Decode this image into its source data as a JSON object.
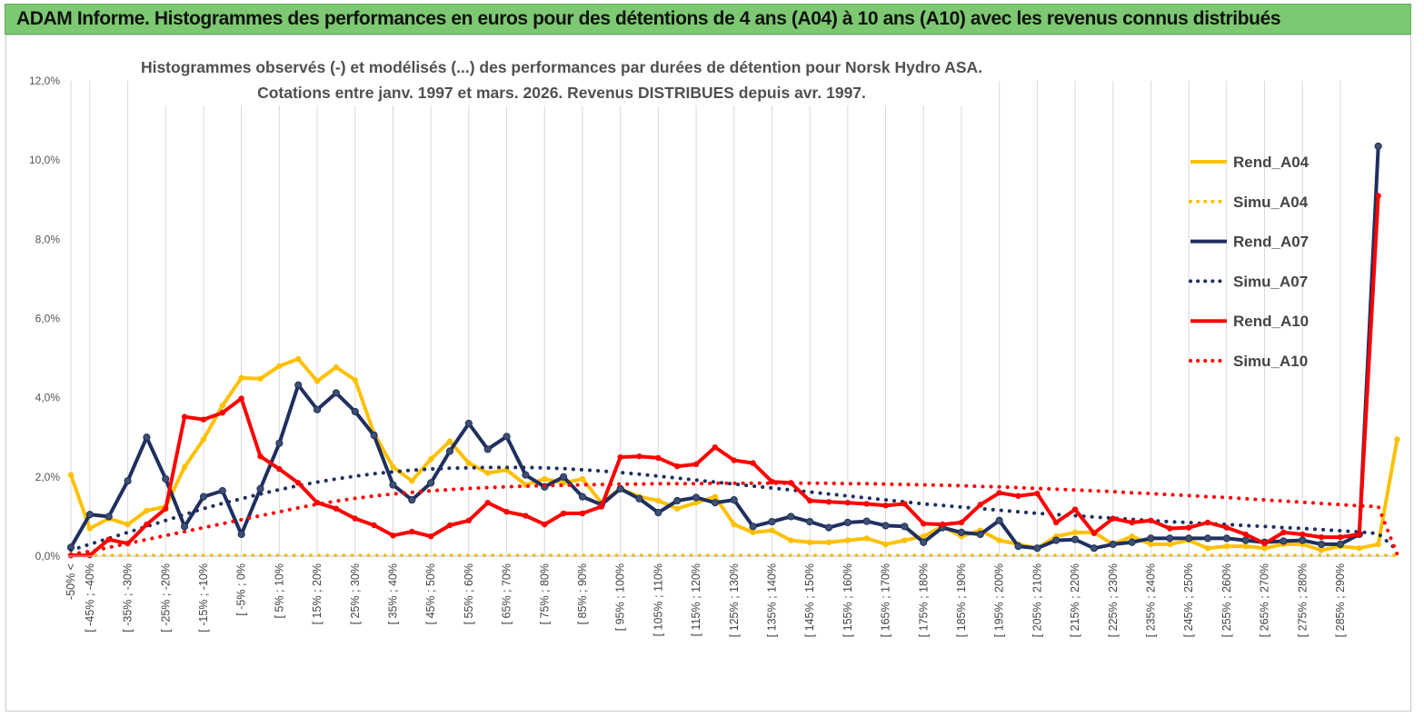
{
  "banner": {
    "title": "ADAM Informe. Histogrammes des performances en euros pour des détentions de 4 ans (A04) à 10 ans (A10) avec les revenus connus distribués"
  },
  "chart_data": {
    "type": "line",
    "title": "Histogrammes observés (-) et modélisés (...) des performances par durées de détention pour Norsk Hydro ASA.",
    "subtitle": "Cotations entre janv. 1997 et mars. 2026. Revenus DISTRIBUES depuis avr. 1997.",
    "xlabel": "",
    "ylabel": "",
    "ylim": [
      0,
      12
    ],
    "y_ticks": [
      "0,0%",
      "2,0%",
      "4,0%",
      "6,0%",
      "8,0%",
      "10,0%",
      "12,0%"
    ],
    "grid": "vertical",
    "legend_position": "right",
    "x_tick_labels": [
      "-50% <",
      "[ -45% ; -40%",
      "[ -35% ; -30%",
      "[ -25% ; -20%",
      "[ -15% ; -10%",
      "[ -5% ; 0%",
      "[ 5% ; 10%",
      "[ 15% ; 20%",
      "[ 25% ; 30%",
      "[ 35% ; 40%",
      "[ 45% ; 50%",
      "[ 55% ; 60%",
      "[ 65% ; 70%",
      "[ 75% ; 80%",
      "[ 85% ; 90%",
      "[ 95% ; 100%",
      "[ 105% ; 110%",
      "[ 115% ; 120%",
      "[ 125% ; 130%",
      "[ 135% ; 140%",
      "[ 145% ; 150%",
      "[ 155% ; 160%",
      "[ 165% ; 170%",
      "[ 175% ; 180%",
      "[ 185% ; 190%",
      "[ 195% ; 200%",
      "[ 205% ; 210%",
      "[ 215% ; 220%",
      "[ 225% ; 230%",
      "[ 235% ; 240%",
      "[ 245% ; 250%",
      "[ 255% ; 260%",
      "[ 265% ; 270%",
      "[ 275% ; 280%",
      "[ 285% ; 290%"
    ],
    "series": [
      {
        "name": "Rend_A04",
        "color": "#FFC000",
        "style": "solid",
        "marker": true,
        "values": [
          2.05,
          0.7,
          0.95,
          0.8,
          1.15,
          1.25,
          2.25,
          2.95,
          3.8,
          4.5,
          4.48,
          4.8,
          4.98,
          4.42,
          4.77,
          4.45,
          3.1,
          2.25,
          1.9,
          2.45,
          2.9,
          2.35,
          2.1,
          2.18,
          1.8,
          1.95,
          1.85,
          1.95,
          1.35,
          1.7,
          1.5,
          1.4,
          1.2,
          1.35,
          1.5,
          0.8,
          0.6,
          0.65,
          0.4,
          0.35,
          0.35,
          0.4,
          0.45,
          0.3,
          0.4,
          0.5,
          0.75,
          0.5,
          0.65,
          0.4,
          0.3,
          0.2,
          0.5,
          0.6,
          0.6,
          0.3,
          0.5,
          0.3,
          0.3,
          0.4,
          0.2,
          0.25,
          0.25,
          0.2,
          0.3,
          0.3,
          0.15,
          0.25,
          0.2,
          0.3,
          2.95
        ]
      },
      {
        "name": "Simu_A04",
        "color": "#FFC000",
        "style": "dotted",
        "marker": false,
        "values": [
          0.02,
          0.02,
          0.02,
          0.02,
          0.02,
          0.02,
          0.02,
          0.02,
          0.02,
          0.02,
          0.02,
          0.02,
          0.02,
          0.02,
          0.02,
          0.02,
          0.02,
          0.02,
          0.02,
          0.02,
          0.02,
          0.02,
          0.02,
          0.02,
          0.02,
          0.02,
          0.02,
          0.02,
          0.02,
          0.02,
          0.02,
          0.02,
          0.02,
          0.02,
          0.02,
          0.02,
          0.02,
          0.02,
          0.02,
          0.02,
          0.02,
          0.02,
          0.02,
          0.02,
          0.02,
          0.02,
          0.02,
          0.02,
          0.02,
          0.02,
          0.02,
          0.02,
          0.02,
          0.02,
          0.02,
          0.02,
          0.02,
          0.02,
          0.02,
          0.02,
          0.02,
          0.02,
          0.02,
          0.02,
          0.02,
          0.02,
          0.02,
          0.02,
          0.02,
          0.02,
          0.02
        ]
      },
      {
        "name": "Rend_A07",
        "color": "#1F2F5F",
        "style": "solid",
        "marker": true,
        "values": [
          0.22,
          1.05,
          1.0,
          1.9,
          3.0,
          1.95,
          0.75,
          1.5,
          1.65,
          0.55,
          1.7,
          2.85,
          4.32,
          3.7,
          4.12,
          3.65,
          3.05,
          1.8,
          1.42,
          1.85,
          2.65,
          3.35,
          2.7,
          3.02,
          2.05,
          1.75,
          2.0,
          1.5,
          1.3,
          1.7,
          1.45,
          1.1,
          1.4,
          1.48,
          1.35,
          1.42,
          0.75,
          0.87,
          1.0,
          0.87,
          0.72,
          0.85,
          0.88,
          0.77,
          0.75,
          0.35,
          0.72,
          0.6,
          0.55,
          0.9,
          0.25,
          0.2,
          0.4,
          0.42,
          0.2,
          0.3,
          0.35,
          0.45,
          0.45,
          0.45,
          0.45,
          0.45,
          0.4,
          0.35,
          0.38,
          0.4,
          0.3,
          0.3,
          0.55,
          10.35
        ]
      },
      {
        "name": "Simu_A07",
        "color": "#1F2F5F",
        "style": "dotted",
        "marker": false,
        "values": [
          0.15,
          0.3,
          0.45,
          0.6,
          0.75,
          0.9,
          1.05,
          1.2,
          1.33,
          1.45,
          1.57,
          1.68,
          1.78,
          1.87,
          1.95,
          2.02,
          2.08,
          2.13,
          2.17,
          2.2,
          2.22,
          2.23,
          2.24,
          2.24,
          2.24,
          2.23,
          2.21,
          2.18,
          2.15,
          2.11,
          2.07,
          2.02,
          1.97,
          1.92,
          1.87,
          1.82,
          1.77,
          1.72,
          1.67,
          1.62,
          1.57,
          1.52,
          1.47,
          1.42,
          1.37,
          1.32,
          1.28,
          1.24,
          1.2,
          1.16,
          1.12,
          1.08,
          1.05,
          1.02,
          0.99,
          0.96,
          0.93,
          0.9,
          0.87,
          0.85,
          0.82,
          0.8,
          0.77,
          0.75,
          0.72,
          0.7,
          0.67,
          0.64,
          0.61,
          0.57,
          0.15
        ]
      },
      {
        "name": "Rend_A10",
        "color": "#FF0000",
        "style": "solid",
        "marker": true,
        "values": [
          0.02,
          0.02,
          0.42,
          0.32,
          0.8,
          1.2,
          3.52,
          3.45,
          3.62,
          3.98,
          2.52,
          2.2,
          1.85,
          1.35,
          1.2,
          0.95,
          0.78,
          0.52,
          0.62,
          0.5,
          0.78,
          0.9,
          1.35,
          1.12,
          1.02,
          0.8,
          1.08,
          1.08,
          1.25,
          2.5,
          2.52,
          2.48,
          2.27,
          2.32,
          2.75,
          2.42,
          2.35,
          1.88,
          1.85,
          1.4,
          1.37,
          1.35,
          1.32,
          1.28,
          1.32,
          0.82,
          0.8,
          0.85,
          1.3,
          1.6,
          1.52,
          1.58,
          0.85,
          1.18,
          0.58,
          0.95,
          0.85,
          0.9,
          0.7,
          0.72,
          0.85,
          0.72,
          0.55,
          0.32,
          0.6,
          0.55,
          0.48,
          0.48,
          0.55,
          9.1
        ]
      },
      {
        "name": "Simu_A10",
        "color": "#FF0000",
        "style": "dotted",
        "marker": false,
        "values": [
          0.05,
          0.12,
          0.22,
          0.32,
          0.42,
          0.52,
          0.62,
          0.72,
          0.82,
          0.92,
          1.02,
          1.12,
          1.22,
          1.31,
          1.39,
          1.46,
          1.52,
          1.57,
          1.61,
          1.65,
          1.68,
          1.71,
          1.73,
          1.75,
          1.77,
          1.78,
          1.79,
          1.8,
          1.81,
          1.82,
          1.82,
          1.83,
          1.83,
          1.83,
          1.84,
          1.84,
          1.84,
          1.84,
          1.84,
          1.84,
          1.84,
          1.83,
          1.83,
          1.82,
          1.81,
          1.8,
          1.79,
          1.78,
          1.76,
          1.75,
          1.73,
          1.71,
          1.69,
          1.67,
          1.65,
          1.63,
          1.6,
          1.58,
          1.55,
          1.53,
          1.5,
          1.48,
          1.45,
          1.42,
          1.39,
          1.36,
          1.33,
          1.3,
          1.27,
          1.25,
          0.05
        ]
      }
    ]
  }
}
